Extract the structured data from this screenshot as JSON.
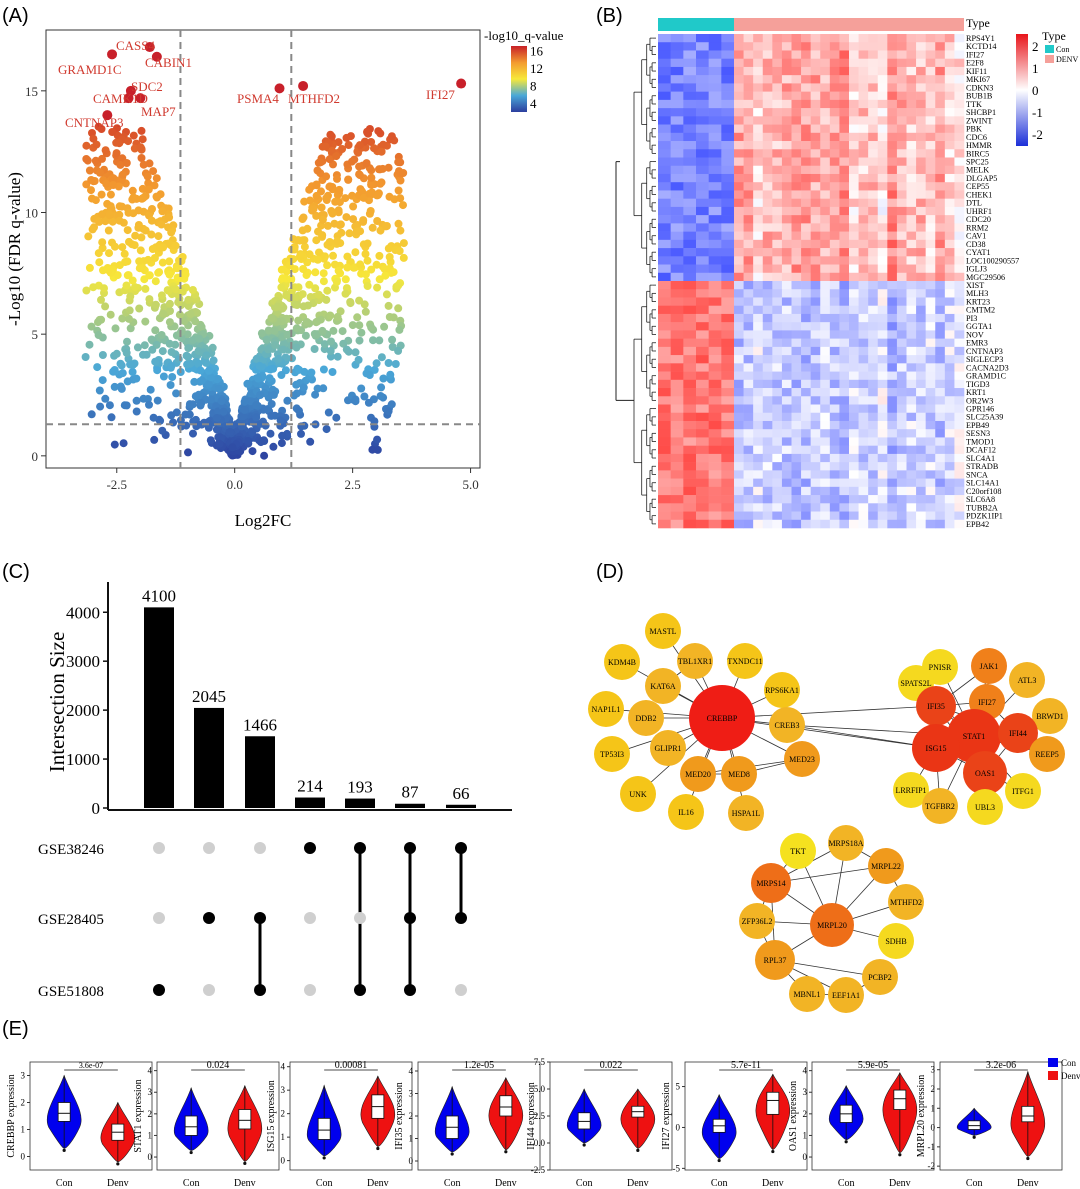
{
  "panel_labels": [
    "(A)",
    "(B)",
    "(C)",
    "(D)",
    "(E)"
  ],
  "chart_data": [
    {
      "panel": "A",
      "type": "scatter",
      "title": "",
      "xlabel": "Log2FC",
      "ylabel": "-Log10 (FDR q-value)",
      "xlim": [
        -4,
        5.2
      ],
      "ylim": [
        -0.5,
        17.5
      ],
      "xticks": [
        "-2.5",
        "0.0",
        "2.5",
        "5.0"
      ],
      "yticks": [
        "0",
        "5",
        "10",
        "15"
      ],
      "x_thresholds": [
        -1.15,
        1.2
      ],
      "y_threshold": 1.3,
      "colorbar": {
        "title": "-log10_q-value",
        "ticks": [
          "16",
          "12",
          "8",
          "4"
        ],
        "range": [
          2,
          17
        ]
      },
      "labeled_points": [
        {
          "label": "CASS4",
          "x": -1.8,
          "y": 16.8
        },
        {
          "label": "CABIN1",
          "x": -1.65,
          "y": 16.4
        },
        {
          "label": "GRAMD1C",
          "x": -2.6,
          "y": 16.5
        },
        {
          "label": "SDC2",
          "x": -2.2,
          "y": 15.0
        },
        {
          "label": "CAMK1D",
          "x": -2.25,
          "y": 14.7
        },
        {
          "label": "MAP7",
          "x": -2.0,
          "y": 14.7
        },
        {
          "label": "CNTNAP3",
          "x": -2.7,
          "y": 14.0
        },
        {
          "label": "PSMA4",
          "x": 0.95,
          "y": 15.1
        },
        {
          "label": "MTHFD2",
          "x": 1.45,
          "y": 15.2
        },
        {
          "label": "IFI27",
          "x": 4.8,
          "y": 15.3
        }
      ]
    },
    {
      "panel": "B",
      "type": "heatmap",
      "legend_title": "Type",
      "groups": [
        "Con",
        "DENV"
      ],
      "group_colors": {
        "Con": "#20c9c9",
        "DENV": "#f5a09a"
      },
      "n_con": 6,
      "n_denv": 24,
      "scale_ticks": [
        "2",
        "1",
        "0",
        "-1",
        "-2"
      ],
      "up_genes": [
        "RPS4Y1",
        "KCTD14",
        "IFI27",
        "E2F8",
        "KIF11",
        "MKI67",
        "CDKN3",
        "BUB1B",
        "TTK",
        "SHCBP1",
        "ZWINT",
        "PBK",
        "CDC6",
        "HMMR",
        "BIRC5",
        "SPC25",
        "MELK",
        "DLGAP5",
        "CEP55",
        "CHEK1",
        "DTL",
        "UHRF1",
        "CDC20",
        "RRM2",
        "CAV1",
        "CD38",
        "CYAT1",
        "LOC100290557",
        "IGLJ3",
        "MGC29506"
      ],
      "down_genes": [
        "XIST",
        "MLH3",
        "KRT23",
        "CMTM2",
        "PI3",
        "GGTA1",
        "NOV",
        "EMR3",
        "CNTNAP3",
        "SIGLECP3",
        "CACNA2D3",
        "GRAMD1C",
        "TIGD3",
        "KRT1",
        "OR2W3",
        "GPR146",
        "SLC25A39",
        "EPB49",
        "SESN3",
        "TMOD1",
        "DCAF12",
        "SLC4A1",
        "STRADB",
        "SNCA",
        "SLC14A1",
        "C20orf108",
        "SLC6A8",
        "TUBB2A",
        "PDZK1IP1",
        "EPB42"
      ]
    },
    {
      "panel": "C",
      "type": "bar",
      "ylabel": "Intersection Size",
      "ylim": [
        0,
        4700
      ],
      "yticks": [
        "0",
        "1000",
        "2000",
        "3000",
        "4000"
      ],
      "values": [
        4100,
        2045,
        1466,
        214,
        193,
        87,
        66
      ],
      "sets": [
        "GSE38246",
        "GSE28405",
        "GSE51808"
      ],
      "membership": [
        [
          0,
          0,
          1
        ],
        [
          0,
          1,
          0
        ],
        [
          0,
          1,
          1
        ],
        [
          1,
          0,
          0
        ],
        [
          1,
          0,
          1
        ],
        [
          1,
          1,
          1
        ],
        [
          1,
          1,
          0
        ]
      ]
    },
    {
      "panel": "D",
      "type": "network",
      "nodes": [
        {
          "id": "MASTL",
          "c": "#f5c518"
        },
        {
          "id": "KDM4B",
          "c": "#f5c518"
        },
        {
          "id": "TBL1XR1",
          "c": "#f2b425"
        },
        {
          "id": "TXNDC11",
          "c": "#f5c518"
        },
        {
          "id": "KAT6A",
          "c": "#f2b425"
        },
        {
          "id": "RPS6KA1",
          "c": "#f5c518"
        },
        {
          "id": "NAP1L1",
          "c": "#f5c518"
        },
        {
          "id": "DDB2",
          "c": "#f2b425"
        },
        {
          "id": "CREBBP",
          "c": "#ef1d15"
        },
        {
          "id": "CREB3",
          "c": "#f2b425"
        },
        {
          "id": "TP53I3",
          "c": "#f5c518"
        },
        {
          "id": "GLIPR1",
          "c": "#f2b425"
        },
        {
          "id": "MED23",
          "c": "#f09a1c"
        },
        {
          "id": "MED20",
          "c": "#f09a1c"
        },
        {
          "id": "MED8",
          "c": "#f09a1c"
        },
        {
          "id": "UNK",
          "c": "#f5c518"
        },
        {
          "id": "IL16",
          "c": "#f5c518"
        },
        {
          "id": "HSPA1L",
          "c": "#f2b425"
        },
        {
          "id": "PNISR",
          "c": "#f5d91f"
        },
        {
          "id": "JAK1",
          "c": "#f0801a"
        },
        {
          "id": "SPATS2L",
          "c": "#f5d91f"
        },
        {
          "id": "IFI27",
          "c": "#f0801a"
        },
        {
          "id": "ATL3",
          "c": "#f2b425"
        },
        {
          "id": "IFI35",
          "c": "#ea4318"
        },
        {
          "id": "BRWD1",
          "c": "#f2b425"
        },
        {
          "id": "STAT1",
          "c": "#ea3515"
        },
        {
          "id": "IFI44",
          "c": "#ea4318"
        },
        {
          "id": "ISG15",
          "c": "#ea3515"
        },
        {
          "id": "REEP5",
          "c": "#f09a1c"
        },
        {
          "id": "OAS1",
          "c": "#ea4318"
        },
        {
          "id": "LRRFIP1",
          "c": "#f5d91f"
        },
        {
          "id": "TGFBR2",
          "c": "#f2b425"
        },
        {
          "id": "UBL3",
          "c": "#f5d91f"
        },
        {
          "id": "ITFG1",
          "c": "#f5d91f"
        },
        {
          "id": "TKT",
          "c": "#f5e11f"
        },
        {
          "id": "MRPS18A",
          "c": "#f2b425"
        },
        {
          "id": "MRPL22",
          "c": "#f09a1c"
        },
        {
          "id": "MRPS14",
          "c": "#ee6e18"
        },
        {
          "id": "MTHFD2",
          "c": "#f2b425"
        },
        {
          "id": "ZFP36L2",
          "c": "#f2b425"
        },
        {
          "id": "MRPL20",
          "c": "#ee6e18"
        },
        {
          "id": "SDHB",
          "c": "#f5d91f"
        },
        {
          "id": "RPL37",
          "c": "#f09a1c"
        },
        {
          "id": "PCBP2",
          "c": "#f2b425"
        },
        {
          "id": "MBNL1",
          "c": "#f2b425"
        },
        {
          "id": "EEF1A1",
          "c": "#f2b425"
        }
      ],
      "edges": [
        [
          "CREBBP",
          "MASTL"
        ],
        [
          "CREBBP",
          "KDM4B"
        ],
        [
          "CREBBP",
          "TBL1XR1"
        ],
        [
          "CREBBP",
          "TXNDC11"
        ],
        [
          "CREBBP",
          "KAT6A"
        ],
        [
          "CREBBP",
          "RPS6KA1"
        ],
        [
          "CREBBP",
          "NAP1L1"
        ],
        [
          "CREBBP",
          "DDB2"
        ],
        [
          "CREBBP",
          "CREB3"
        ],
        [
          "CREBBP",
          "TP53I3"
        ],
        [
          "CREBBP",
          "GLIPR1"
        ],
        [
          "CREBBP",
          "MED23"
        ],
        [
          "CREBBP",
          "MED20"
        ],
        [
          "CREBBP",
          "MED8"
        ],
        [
          "CREBBP",
          "UNK"
        ],
        [
          "CREBBP",
          "IL16"
        ],
        [
          "CREBBP",
          "HSPA1L"
        ],
        [
          "MED8",
          "MED20"
        ],
        [
          "MED8",
          "MED23"
        ],
        [
          "MED20",
          "MED23"
        ],
        [
          "TBL1XR1",
          "KAT6A"
        ],
        [
          "CREBBP",
          "IFI35"
        ],
        [
          "CREBBP",
          "ISG15"
        ],
        [
          "CREB3",
          "STAT1"
        ],
        [
          "CREB3",
          "ISG15"
        ],
        [
          "STAT1",
          "IFI35"
        ],
        [
          "STAT1",
          "IFI27"
        ],
        [
          "STAT1",
          "JAK1"
        ],
        [
          "STAT1",
          "IFI44"
        ],
        [
          "STAT1",
          "ISG15"
        ],
        [
          "STAT1",
          "OAS1"
        ],
        [
          "STAT1",
          "PNISR"
        ],
        [
          "STAT1",
          "SPATS2L"
        ],
        [
          "STAT1",
          "ATL3"
        ],
        [
          "STAT1",
          "BRWD1"
        ],
        [
          "STAT1",
          "REEP5"
        ],
        [
          "STAT1",
          "TGFBR2"
        ],
        [
          "STAT1",
          "UBL3"
        ],
        [
          "STAT1",
          "ITFG1"
        ],
        [
          "ISG15",
          "IFI35"
        ],
        [
          "ISG15",
          "OAS1"
        ],
        [
          "ISG15",
          "IFI44"
        ],
        [
          "ISG15",
          "IFI27"
        ],
        [
          "ISG15",
          "LRRFIP1"
        ],
        [
          "ISG15",
          "TGFBR2"
        ],
        [
          "OAS1",
          "IFI44"
        ],
        [
          "OAS1",
          "IFI35"
        ],
        [
          "OAS1",
          "IFI27"
        ],
        [
          "OAS1",
          "UBL3"
        ],
        [
          "OAS1",
          "ITFG1"
        ],
        [
          "IFI35",
          "IFI44"
        ],
        [
          "IFI35",
          "IFI27"
        ],
        [
          "IFI44",
          "IFI27"
        ],
        [
          "JAK1",
          "IFI27"
        ],
        [
          "JAK1",
          "IFI35"
        ],
        [
          "MRPL20",
          "MRPS14"
        ],
        [
          "MRPL20",
          "MRPS18A"
        ],
        [
          "MRPL20",
          "MRPL22"
        ],
        [
          "MRPL20",
          "MTHFD2"
        ],
        [
          "MRPL20",
          "ZFP36L2"
        ],
        [
          "MRPL20",
          "SDHB"
        ],
        [
          "MRPL20",
          "RPL37"
        ],
        [
          "MRPL20",
          "TKT"
        ],
        [
          "MRPS14",
          "MRPS18A"
        ],
        [
          "MRPS14",
          "MRPL22"
        ],
        [
          "MRPS14",
          "RPL37"
        ],
        [
          "MRPS14",
          "ZFP36L2"
        ],
        [
          "MRPS14",
          "TKT"
        ],
        [
          "MRPS18A",
          "MRPL22"
        ],
        [
          "MRPL22",
          "MTHFD2"
        ],
        [
          "RPL37",
          "MBNL1"
        ],
        [
          "RPL37",
          "EEF1A1"
        ],
        [
          "RPL37",
          "PCBP2"
        ],
        [
          "EEF1A1",
          "PCBP2"
        ],
        [
          "MBNL1",
          "EEF1A1"
        ],
        [
          "RPL37",
          "ZFP36L2"
        ]
      ]
    },
    {
      "panel": "E",
      "type": "violin",
      "groups": [
        "Con",
        "Denv"
      ],
      "group_colors": {
        "Con": "#0000ee",
        "Denv": "#ee1111"
      },
      "legend": [
        "Con",
        "Denv"
      ],
      "plots": [
        {
          "gene": "CREBBP",
          "ylabel": "CREBBP expression",
          "pvalue": "3.6e-07",
          "ylim": [
            -0.5,
            3.5
          ],
          "yticks": [
            "0",
            "1",
            "2",
            "3"
          ],
          "con": {
            "median": 1.6,
            "q1": 1.3,
            "q3": 2.0,
            "min": 0.3,
            "max": 3.0
          },
          "denv": {
            "median": 0.9,
            "q1": 0.6,
            "q3": 1.2,
            "min": -0.2,
            "max": 2.0
          }
        },
        {
          "gene": "STAT1",
          "ylabel": "STAT1 expression",
          "pvalue": "0.024",
          "ylim": [
            -0.6,
            4.4
          ],
          "yticks": [
            "0",
            "1",
            "2",
            "3",
            "4"
          ],
          "con": {
            "median": 1.4,
            "q1": 1.0,
            "q3": 1.9,
            "min": 0.3,
            "max": 3.2
          },
          "denv": {
            "median": 1.7,
            "q1": 1.3,
            "q3": 2.2,
            "min": -0.2,
            "max": 3.3
          }
        },
        {
          "gene": "ISG15",
          "ylabel": "ISG15 expression",
          "pvalue": "0.00081",
          "ylim": [
            -0.4,
            4.2
          ],
          "yticks": [
            "0",
            "1",
            "2",
            "3",
            "4"
          ],
          "con": {
            "median": 1.3,
            "q1": 0.9,
            "q3": 1.8,
            "min": 0.2,
            "max": 3.2
          },
          "denv": {
            "median": 2.3,
            "q1": 1.8,
            "q3": 2.8,
            "min": 0.6,
            "max": 3.6
          }
        },
        {
          "gene": "IFI35",
          "ylabel": "IFI35 expression",
          "pvalue": "1.2e-05",
          "ylim": [
            -0.4,
            4.4
          ],
          "yticks": [
            "0",
            "1",
            "2",
            "3",
            "4"
          ],
          "con": {
            "median": 1.5,
            "q1": 1.0,
            "q3": 2.0,
            "min": 0.4,
            "max": 3.3
          },
          "denv": {
            "median": 2.4,
            "q1": 2.0,
            "q3": 2.9,
            "min": 0.5,
            "max": 3.7
          }
        },
        {
          "gene": "IFI44",
          "ylabel": "IFI44 expression",
          "pvalue": "0.022",
          "ylim": [
            -2.5,
            7.5
          ],
          "yticks": [
            "-2.5",
            "0.0",
            "2.5",
            "5.0",
            "7.5"
          ],
          "con": {
            "median": 2.0,
            "q1": 1.3,
            "q3": 2.8,
            "min": 0.0,
            "max": 5.0
          },
          "denv": {
            "median": 2.9,
            "q1": 2.4,
            "q3": 3.4,
            "min": -0.5,
            "max": 5.0
          }
        },
        {
          "gene": "IFI27",
          "ylabel": "IFI27 expression",
          "pvalue": "5.7e-11",
          "ylim": [
            -5.2,
            8.0
          ],
          "yticks": [
            "-5",
            "0",
            "5"
          ],
          "con": {
            "median": 0.2,
            "q1": -0.6,
            "q3": 1.0,
            "min": -3.8,
            "max": 4.0
          },
          "denv": {
            "median": 3.3,
            "q1": 1.6,
            "q3": 4.3,
            "min": -2.7,
            "max": 6.5
          }
        },
        {
          "gene": "OAS1",
          "ylabel": "OAS1 expression",
          "pvalue": "5.9e-05",
          "ylim": [
            -0.6,
            4.4
          ],
          "yticks": [
            "0",
            "1",
            "2",
            "3",
            "4"
          ],
          "con": {
            "median": 2.0,
            "q1": 1.6,
            "q3": 2.4,
            "min": 0.8,
            "max": 3.3
          },
          "denv": {
            "median": 2.7,
            "q1": 2.2,
            "q3": 3.1,
            "min": 0.2,
            "max": 3.9
          }
        },
        {
          "gene": "MRPL20",
          "ylabel": "MRPL20 expression",
          "pvalue": "3.2e-06",
          "ylim": [
            -2.2,
            3.4
          ],
          "yticks": [
            "-2",
            "-1",
            "0",
            "1",
            "2",
            "3"
          ],
          "con": {
            "median": 0.1,
            "q1": -0.1,
            "q3": 0.35,
            "min": -0.4,
            "max": 1.0
          },
          "denv": {
            "median": 0.6,
            "q1": 0.3,
            "q3": 1.1,
            "min": -1.5,
            "max": 2.9
          }
        }
      ]
    }
  ]
}
